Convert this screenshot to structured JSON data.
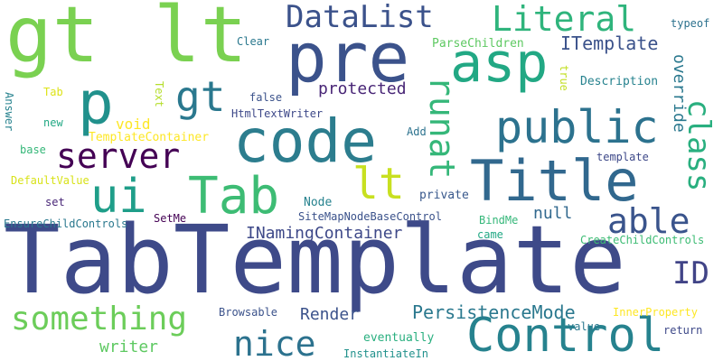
{
  "palette": {
    "purple": "#440154",
    "indigo": "#3b528b",
    "blue": "#31688e",
    "teal": "#21918c",
    "green": "#35b779",
    "lime": "#7ad151",
    "yellow": "#d2e21b",
    "gold": "#e8e419"
  },
  "words": [
    {
      "text": "TabTemplate",
      "color": "#3e4a89"
    },
    {
      "text": "gt",
      "color": "#7ad151"
    },
    {
      "text": "lt",
      "color": "#7ad151"
    },
    {
      "text": "pre",
      "color": "#3b528b"
    },
    {
      "text": "code",
      "color": "#2c7d8e"
    },
    {
      "text": "Title",
      "color": "#31688e"
    },
    {
      "text": "Control",
      "color": "#26828e"
    },
    {
      "text": "asp",
      "color": "#22a884"
    },
    {
      "text": "p",
      "color": "#21918c"
    },
    {
      "text": "gt",
      "color": "#2a788e"
    },
    {
      "text": "public",
      "color": "#2c728e"
    },
    {
      "text": "ui",
      "color": "#1f9e89"
    },
    {
      "text": "Tab",
      "color": "#3dbc74"
    },
    {
      "text": "lt",
      "color": "#c8e020"
    },
    {
      "text": "runat",
      "color": "#35b779"
    },
    {
      "text": "class",
      "color": "#29af7f"
    },
    {
      "text": "server",
      "color": "#440154"
    },
    {
      "text": "able",
      "color": "#3a548c"
    },
    {
      "text": "ID",
      "color": "#414487"
    },
    {
      "text": "something",
      "color": "#6ccd5a"
    },
    {
      "text": "nice",
      "color": "#2c728e"
    },
    {
      "text": "DataList",
      "color": "#3b528b"
    },
    {
      "text": "Literal",
      "color": "#2fb47c"
    },
    {
      "text": "PersistenceMode",
      "color": "#2a788e"
    },
    {
      "text": "INamingContainer",
      "color": "#3e4989"
    },
    {
      "text": "override",
      "color": "#2a788e"
    },
    {
      "text": "protected",
      "color": "#482576"
    },
    {
      "text": "ITemplate",
      "color": "#3b528b"
    },
    {
      "text": "writer",
      "color": "#5ec962"
    },
    {
      "text": "Render",
      "color": "#3b528b"
    },
    {
      "text": "null",
      "color": "#31688e"
    },
    {
      "text": "void",
      "color": "#fde725"
    },
    {
      "text": "TemplateContainer",
      "color": "#fde725"
    },
    {
      "text": "ParseChildren",
      "color": "#5ec962"
    },
    {
      "text": "Description",
      "color": "#26828e"
    },
    {
      "text": "Clear",
      "color": "#2a788e"
    },
    {
      "text": "typeof",
      "color": "#2c728e"
    },
    {
      "text": "Tab",
      "color": "#dde318"
    },
    {
      "text": "Text",
      "color": "#b5de2b"
    },
    {
      "text": "true",
      "color": "#c2df23"
    },
    {
      "text": "false",
      "color": "#3b528b"
    },
    {
      "text": "HtmlTextWriter",
      "color": "#3e4989"
    },
    {
      "text": "Answer",
      "color": "#26828e"
    },
    {
      "text": "new",
      "color": "#22a884"
    },
    {
      "text": "base",
      "color": "#35b779"
    },
    {
      "text": "Add",
      "color": "#2c728e"
    },
    {
      "text": "template",
      "color": "#3e4989"
    },
    {
      "text": "DefaultValue",
      "color": "#d8e219"
    },
    {
      "text": "set",
      "color": "#482677"
    },
    {
      "text": "Node",
      "color": "#26828e"
    },
    {
      "text": "private",
      "color": "#38588c"
    },
    {
      "text": "EnsureChildControls",
      "color": "#2a788e"
    },
    {
      "text": "SetMe",
      "color": "#440154"
    },
    {
      "text": "SiteMapNodeBaseControl",
      "color": "#3b528b"
    },
    {
      "text": "BindMe",
      "color": "#35b779"
    },
    {
      "text": "came",
      "color": "#22a884"
    },
    {
      "text": "CreateChildControls",
      "color": "#3dbc74"
    },
    {
      "text": "Browsable",
      "color": "#3b528b"
    },
    {
      "text": "InnerProperty",
      "color": "#fde725"
    },
    {
      "text": "eventually",
      "color": "#29af7f"
    },
    {
      "text": "value",
      "color": "#2a788e"
    },
    {
      "text": "return",
      "color": "#3e4989"
    },
    {
      "text": "InstantiateIn",
      "color": "#21918c"
    }
  ]
}
